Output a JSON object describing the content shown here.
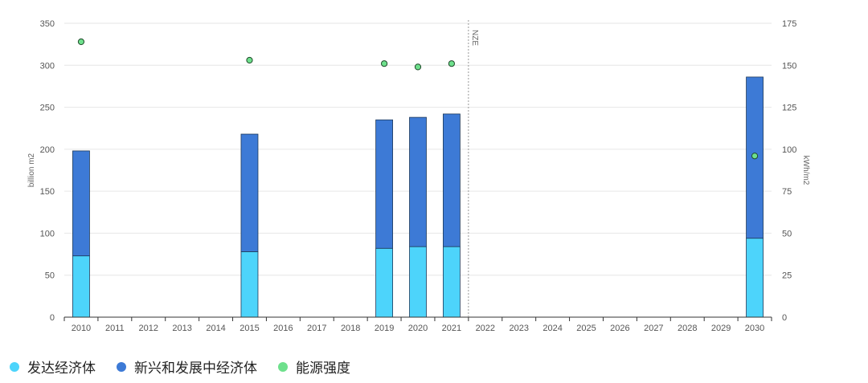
{
  "chart_data": {
    "type": "bar",
    "stacked": true,
    "categories": [
      "2010",
      "2011",
      "2012",
      "2013",
      "2014",
      "2015",
      "2016",
      "2017",
      "2018",
      "2019",
      "2020",
      "2021",
      "2022",
      "2023",
      "2024",
      "2025",
      "2026",
      "2027",
      "2028",
      "2029",
      "2030"
    ],
    "series": [
      {
        "name": "发达经济体",
        "type": "bar",
        "axis": "left",
        "color": "#4dd4fb",
        "values": [
          73,
          null,
          null,
          null,
          null,
          78,
          null,
          null,
          null,
          82,
          84,
          84,
          null,
          null,
          null,
          null,
          null,
          null,
          null,
          null,
          94
        ]
      },
      {
        "name": "新兴和发展中经济体",
        "type": "bar",
        "axis": "left",
        "color": "#3d7ad6",
        "values": [
          125,
          null,
          null,
          null,
          null,
          140,
          null,
          null,
          null,
          153,
          154,
          158,
          null,
          null,
          null,
          null,
          null,
          null,
          null,
          null,
          192
        ]
      },
      {
        "name": "能源强度",
        "type": "scatter",
        "axis": "right",
        "color": "#6ee08c",
        "values": [
          164,
          null,
          null,
          null,
          null,
          153,
          null,
          null,
          null,
          151,
          149,
          151,
          null,
          null,
          null,
          null,
          null,
          null,
          null,
          null,
          96
        ]
      }
    ],
    "ylabel": "billion m2",
    "y2label": "kWh/m2",
    "ylim": [
      0,
      350
    ],
    "y2lim": [
      0,
      175
    ],
    "yticks": [
      0,
      50,
      100,
      150,
      200,
      250,
      300,
      350
    ],
    "y2ticks": [
      0,
      25,
      50,
      75,
      100,
      125,
      150,
      175
    ],
    "grid": true,
    "legend": "bottom-left",
    "annotation": {
      "text": "NZE",
      "after_category": "2021"
    }
  },
  "legend_items": [
    {
      "label": "发达经济体",
      "color": "#4dd4fb"
    },
    {
      "label": "新兴和发展中经济体",
      "color": "#3d7ad6"
    },
    {
      "label": "能源强度",
      "color": "#6ee08c"
    }
  ]
}
